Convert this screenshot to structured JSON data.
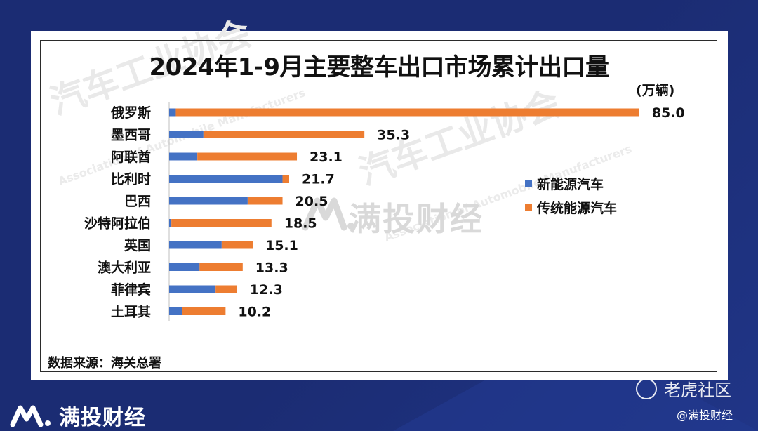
{
  "title": "2024年1-9月主要整车出口市场累计出口量",
  "unit": "(万辆)",
  "source": "数据来源：海关总署",
  "watermark": {
    "brand": "满投财经",
    "assoc_cn": "汽车工业协会",
    "assoc_en": "Association of Automobile Manufacturers"
  },
  "legend": [
    {
      "name": "新能源汽车",
      "color": "#4472c4"
    },
    {
      "name": "传统能源汽车",
      "color": "#ed7d31"
    }
  ],
  "chart_data": {
    "type": "bar",
    "orientation": "horizontal",
    "stacked": true,
    "title": "2024年1-9月主要整车出口市场累计出口量",
    "unit": "万辆",
    "categories": [
      "俄罗斯",
      "墨西哥",
      "阿联酋",
      "比利时",
      "巴西",
      "沙特阿拉伯",
      "英国",
      "澳大利亚",
      "菲律宾",
      "土耳其"
    ],
    "totals": [
      85.0,
      35.3,
      23.1,
      21.7,
      20.5,
      18.5,
      15.1,
      13.3,
      12.3,
      10.2
    ],
    "total_labels": [
      "85.0",
      "35.3",
      "23.1",
      "21.7",
      "20.5",
      "18.5",
      "15.1",
      "13.3",
      "12.3",
      "10.2"
    ],
    "series": [
      {
        "name": "新能源汽车",
        "values": [
          1.2,
          6.2,
          5.1,
          20.5,
          14.2,
          0.4,
          9.5,
          5.5,
          8.4,
          2.3
        ]
      },
      {
        "name": "传统能源汽车",
        "values": [
          83.8,
          29.1,
          18.0,
          1.2,
          6.3,
          18.1,
          5.6,
          7.8,
          3.9,
          7.9
        ]
      }
    ],
    "legend_position": "right",
    "grid": false
  },
  "footer": {
    "brand": "满投财经",
    "platform": "老虎社区",
    "handle": "@满投财经"
  }
}
